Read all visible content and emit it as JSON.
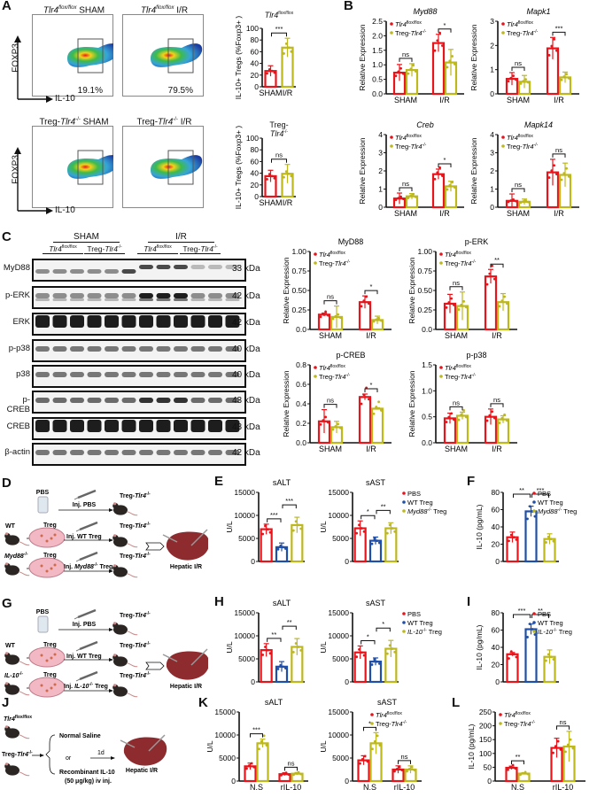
{
  "colors": {
    "red": "#e8141b",
    "olive": "#bdb81c",
    "blue": "#1f4fa8",
    "black": "#111111"
  },
  "panels": {
    "A": {
      "label": "A",
      "flow": [
        {
          "title_pre": "Tlr4",
          "title_sup": "flox/flox",
          "title_post": " SHAM",
          "pct": "19.1%"
        },
        {
          "title_pre": "Tlr4",
          "title_sup": "flox/flox",
          "title_post": " I/R",
          "pct": "79.5%"
        },
        {
          "title_pre": "Treg-",
          "title_it": "Tlr4",
          "title_sup": "-/-",
          "title_post": " SHAM",
          "pct": ""
        },
        {
          "title_pre": "Treg-",
          "title_it": "Tlr4",
          "title_sup": "-/-",
          "title_post": " I/R",
          "pct": ""
        }
      ],
      "y_axis": "FOXP3",
      "x_axis": "IL-10"
    },
    "B": {
      "label": "B"
    },
    "C": {
      "label": "C",
      "groups": [
        "SHAM",
        "I/R"
      ],
      "subgroups": [
        "Tlr4 flox/flox",
        "Treg-Tlr4 -/-",
        "Tlr4 flox/flox",
        "Treg-Tlr4 -/-"
      ],
      "blots": [
        {
          "name": "MyD88",
          "kda": "33 kDa"
        },
        {
          "name": "p-ERK",
          "kda": "42 kDa"
        },
        {
          "name": "ERK",
          "kda": "42 kDa"
        },
        {
          "name": "p-p38",
          "kda": "40 kDa"
        },
        {
          "name": "p38",
          "kda": "40 kDa"
        },
        {
          "name": "p-CREB",
          "kda": "43 kDa"
        },
        {
          "name": "CREB",
          "kda": "43 kDa"
        },
        {
          "name": "β-actin",
          "kda": "42 kDa"
        }
      ]
    },
    "D": {
      "label": "D",
      "source": "PBS",
      "donors": [
        "WT",
        "Myd88-/-"
      ],
      "treg": "Treg",
      "injections": [
        "Inj. PBS",
        "Inj. WT  Treg",
        "Inj. Myd88-/- Treg"
      ],
      "recipient": "Treg-Tlr4-/-",
      "outcome": "Hepatic I/R"
    },
    "G": {
      "label": "G",
      "source": "PBS",
      "donors": [
        "WT",
        "IL-10-/-"
      ],
      "treg": "Treg",
      "injections": [
        "Inj. PBS",
        "Inj. WT  Treg",
        "Inj. IL-10-/- Treg"
      ],
      "recipient": "Treg-Tlr4-/-",
      "outcome": "Hepatic I/R"
    },
    "J": {
      "label": "J",
      "mice": [
        "Tlr4 flox/flox",
        "Treg-Tlr4-/-"
      ],
      "options": [
        "Normal Saline",
        "or",
        "Recombinant IL-10",
        "(50 μg/kg) iv inj."
      ],
      "time": "1d",
      "outcome": "Hepatic I/R"
    },
    "E": {
      "label": "E"
    },
    "F": {
      "label": "F"
    },
    "H": {
      "label": "H"
    },
    "I": {
      "label": "I"
    },
    "K": {
      "label": "K"
    },
    "L": {
      "label": "L"
    }
  },
  "chart_data": [
    {
      "id": "A_flox",
      "type": "bar",
      "title": "Tlr4 flox/flox",
      "categories": [
        "SHAM",
        "I/R"
      ],
      "values": [
        27,
        67
      ],
      "errors": [
        9,
        16
      ],
      "ylabel": "IL-10+ Tregs (%Foxp3+ )",
      "ylim": [
        0,
        100
      ],
      "yticks": [
        0,
        20,
        40,
        60,
        80,
        100
      ],
      "colors": [
        "#e8141b",
        "#bdb81c"
      ],
      "sig": [
        {
          "from": 0,
          "to": 1,
          "label": "***"
        }
      ]
    },
    {
      "id": "A_ko",
      "type": "bar",
      "title": "Treg-Tlr4 -/-",
      "categories": [
        "SHAM",
        "I/R"
      ],
      "values": [
        35,
        39
      ],
      "errors": [
        10,
        16
      ],
      "ylabel": "IL-10+ Tregs (%Foxp3+ )",
      "ylim": [
        0,
        100
      ],
      "yticks": [
        0,
        20,
        40,
        60,
        80,
        100
      ],
      "colors": [
        "#e8141b",
        "#bdb81c"
      ],
      "sig": [
        {
          "from": 0,
          "to": 1,
          "label": "ns"
        }
      ]
    },
    {
      "id": "B_Myd88",
      "type": "bar",
      "title": "Myd88",
      "categories": [
        "SHAM",
        "I/R"
      ],
      "series": [
        {
          "name": "Tlr4 flox/flox",
          "values": [
            0.73,
            1.75
          ],
          "errors": [
            0.28,
            0.3
          ]
        },
        {
          "name": "Treg-Tlr4 -/-",
          "values": [
            0.82,
            1.08
          ],
          "errors": [
            0.22,
            0.45
          ]
        }
      ],
      "ylabel": "Relative Expression",
      "ylim": [
        0,
        2.5
      ],
      "yticks": [
        "0.0",
        "0.5",
        "1.0",
        "1.5",
        "2.0",
        "2.5"
      ],
      "sig": [
        {
          "group": 0,
          "label": "ns"
        },
        {
          "group": 1,
          "label": "*"
        }
      ]
    },
    {
      "id": "B_Mapk1",
      "type": "bar",
      "title": "Mapk1",
      "categories": [
        "SHAM",
        "I/R"
      ],
      "series": [
        {
          "name": "Tlr4 flox/flox",
          "values": [
            0.62,
            1.88
          ],
          "errors": [
            0.26,
            0.45
          ]
        },
        {
          "name": "Treg-Tlr4 -/-",
          "values": [
            0.5,
            0.68
          ],
          "errors": [
            0.26,
            0.22
          ]
        }
      ],
      "ylabel": "Relative Expression",
      "ylim": [
        0,
        3
      ],
      "yticks": [
        "0",
        "1",
        "2",
        "3"
      ],
      "sig": [
        {
          "group": 0,
          "label": "ns"
        },
        {
          "group": 1,
          "label": "***"
        }
      ]
    },
    {
      "id": "B_Creb",
      "type": "bar",
      "title": "Creb",
      "categories": [
        "SHAM",
        "I/R"
      ],
      "series": [
        {
          "name": "Tlr4 flox/flox",
          "values": [
            0.48,
            1.82
          ],
          "errors": [
            0.3,
            0.28
          ]
        },
        {
          "name": "Treg-Tlr4 -/-",
          "values": [
            0.6,
            1.15
          ],
          "errors": [
            0.15,
            0.28
          ]
        }
      ],
      "ylabel": "Relative Expression",
      "ylim": [
        0,
        4
      ],
      "yticks": [
        "0",
        "1",
        "2",
        "3",
        "4"
      ],
      "sig": [
        {
          "group": 0,
          "label": "ns"
        },
        {
          "group": 1,
          "label": "*"
        }
      ]
    },
    {
      "id": "B_Mapk14",
      "type": "bar",
      "title": "Mapk14",
      "categories": [
        "SHAM",
        "I/R"
      ],
      "series": [
        {
          "name": "Tlr4 flox/flox",
          "values": [
            0.35,
            1.92
          ],
          "errors": [
            0.38,
            0.72
          ]
        },
        {
          "name": "Treg-Tlr4 -/-",
          "values": [
            0.3,
            1.78
          ],
          "errors": [
            0.15,
            0.65
          ]
        }
      ],
      "ylabel": "Relative Expression",
      "ylim": [
        0,
        4
      ],
      "yticks": [
        "0",
        "1",
        "2",
        "3",
        "4"
      ],
      "sig": [
        {
          "group": 0,
          "label": "ns"
        },
        {
          "group": 1,
          "label": "ns"
        }
      ]
    },
    {
      "id": "C_MyD88",
      "type": "bar",
      "title": "MyD88",
      "categories": [
        "SHAM",
        "I/R"
      ],
      "series": [
        {
          "name": "Tlr4 flox/flox",
          "values": [
            0.19,
            0.35
          ],
          "errors": [
            0.02,
            0.08
          ]
        },
        {
          "name": "Treg-Tlr4 -/-",
          "values": [
            0.16,
            0.12
          ],
          "errors": [
            0.14,
            0.05
          ]
        }
      ],
      "ylabel": "Relative Expression",
      "ylim": [
        0,
        1
      ],
      "yticks": [
        "0.0",
        "0.25",
        "0.50",
        "0.75",
        "1.00"
      ],
      "sig": [
        {
          "group": 0,
          "label": "ns"
        },
        {
          "group": 1,
          "label": "*"
        }
      ]
    },
    {
      "id": "C_pERK",
      "type": "bar",
      "title": "p-ERK",
      "categories": [
        "SHAM",
        "I/R"
      ],
      "series": [
        {
          "name": "Tlr4 flox/flox",
          "values": [
            0.33,
            0.68
          ],
          "errors": [
            0.12,
            0.09
          ]
        },
        {
          "name": "Treg-Tlr4 -/-",
          "values": [
            0.3,
            0.35
          ],
          "errors": [
            0.18,
            0.11
          ]
        }
      ],
      "ylabel": "Relative Expression",
      "ylim": [
        0,
        1
      ],
      "yticks": [
        "0.0",
        "0.25",
        "0.50",
        "0.75",
        "1.00"
      ],
      "sig": [
        {
          "group": 0,
          "label": "ns"
        },
        {
          "group": 1,
          "label": "**"
        }
      ]
    },
    {
      "id": "C_pCREB",
      "type": "bar",
      "title": "p-CREB",
      "categories": [
        "SHAM",
        "I/R"
      ],
      "series": [
        {
          "name": "Tlr4 flox/flox",
          "values": [
            0.22,
            0.47
          ],
          "errors": [
            0.12,
            0.03
          ]
        },
        {
          "name": "Treg-Tlr4 -/-",
          "values": [
            0.16,
            0.35
          ],
          "errors": [
            0.06,
            0.01
          ]
        }
      ],
      "ylabel": "Relative Expression",
      "ylim": [
        0,
        0.8
      ],
      "yticks": [
        "0.0",
        "0.2",
        "0.4",
        "0.6",
        "0.8"
      ],
      "sig": [
        {
          "group": 0,
          "label": "ns"
        },
        {
          "group": 1,
          "label": "*"
        }
      ]
    },
    {
      "id": "C_pp38",
      "type": "bar",
      "title": "p-p38",
      "categories": [
        "SHAM",
        "I/R"
      ],
      "series": [
        {
          "name": "Tlr4 flox/flox",
          "values": [
            0.47,
            0.5
          ],
          "errors": [
            0.1,
            0.15
          ]
        },
        {
          "name": "Treg-Tlr4 -/-",
          "values": [
            0.52,
            0.45
          ],
          "errors": [
            0.07,
            0.07
          ]
        }
      ],
      "ylabel": "Relative Expression",
      "ylim": [
        0,
        1.5
      ],
      "yticks": [
        "0.0",
        "0.5",
        "1.0",
        "1.5"
      ],
      "sig": [
        {
          "group": 0,
          "label": "ns"
        },
        {
          "group": 1,
          "label": "ns"
        }
      ]
    },
    {
      "id": "E_sALT",
      "type": "bar",
      "title": "sALT",
      "categories": [
        "PBS",
        "WT Treg",
        "Myd88-/- Treg"
      ],
      "values": [
        7000,
        3100,
        7900
      ],
      "errors": [
        1100,
        900,
        1700
      ],
      "ylabel": "U/L",
      "ylim": [
        0,
        15000
      ],
      "yticks": [
        "0",
        "5000",
        "10000",
        "15000"
      ],
      "colors": [
        "#e8141b",
        "#1f4fa8",
        "#bdb81c"
      ],
      "sig": [
        {
          "from": 0,
          "to": 1,
          "label": "***"
        },
        {
          "from": 1,
          "to": 2,
          "label": "***"
        }
      ]
    },
    {
      "id": "E_sAST",
      "type": "bar",
      "title": "sAST",
      "categories": [
        "PBS",
        "WT Treg",
        "Myd88-/- Treg"
      ],
      "values": [
        7200,
        4500,
        7200
      ],
      "errors": [
        1600,
        800,
        1200
      ],
      "ylabel": "U/L",
      "ylim": [
        0,
        15000
      ],
      "yticks": [
        "0",
        "5000",
        "10000",
        "15000"
      ],
      "colors": [
        "#e8141b",
        "#1f4fa8",
        "#bdb81c"
      ],
      "sig": [
        {
          "from": 0,
          "to": 1,
          "label": "*"
        },
        {
          "from": 1,
          "to": 2,
          "label": "**"
        }
      ]
    },
    {
      "id": "F_IL10",
      "type": "bar",
      "title": "",
      "categories": [
        "PBS",
        "WT Treg",
        "Myd88-/- Treg"
      ],
      "values": [
        28,
        58,
        26
      ],
      "errors": [
        6,
        6,
        6
      ],
      "ylabel": "IL-10 (pg/mL)",
      "ylim": [
        0,
        80
      ],
      "yticks": [
        "0",
        "20",
        "40",
        "60",
        "80"
      ],
      "colors": [
        "#e8141b",
        "#1f4fa8",
        "#bdb81c"
      ],
      "sig": [
        {
          "from": 0,
          "to": 1,
          "label": "**"
        },
        {
          "from": 1,
          "to": 2,
          "label": "***"
        }
      ],
      "legend": [
        "PBS",
        "WT Treg",
        "Myd88-/- Treg"
      ]
    },
    {
      "id": "H_sALT",
      "type": "bar",
      "title": "sALT",
      "categories": [
        "PBS",
        "WT Treg",
        "IL-10-/- Treg"
      ],
      "values": [
        6900,
        3300,
        7600
      ],
      "errors": [
        1400,
        1100,
        1800
      ],
      "ylabel": "U/L",
      "ylim": [
        0,
        15000
      ],
      "yticks": [
        "0",
        "5000",
        "10000",
        "15000"
      ],
      "colors": [
        "#e8141b",
        "#1f4fa8",
        "#bdb81c"
      ],
      "sig": [
        {
          "from": 0,
          "to": 1,
          "label": "**"
        },
        {
          "from": 1,
          "to": 2,
          "label": "**"
        }
      ]
    },
    {
      "id": "H_sAST",
      "type": "bar",
      "title": "sAST",
      "categories": [
        "PBS",
        "WT Treg",
        "IL-10-/- Treg"
      ],
      "values": [
        6400,
        4400,
        7200
      ],
      "errors": [
        1400,
        800,
        1800
      ],
      "ylabel": "U/L",
      "ylim": [
        0,
        15000
      ],
      "yticks": [
        "0",
        "5000",
        "10000",
        "15000"
      ],
      "colors": [
        "#e8141b",
        "#1f4fa8",
        "#bdb81c"
      ],
      "sig": [
        {
          "from": 0,
          "to": 1,
          "label": "*"
        },
        {
          "from": 1,
          "to": 2,
          "label": "*"
        }
      ]
    },
    {
      "id": "I_IL10",
      "type": "bar",
      "title": "",
      "categories": [
        "PBS",
        "WT Treg",
        "IL-10-/- Treg"
      ],
      "values": [
        32,
        61,
        29
      ],
      "errors": [
        2,
        6,
        8
      ],
      "ylabel": "IL-10 (pg/mL)",
      "ylim": [
        0,
        80
      ],
      "yticks": [
        "0",
        "20",
        "40",
        "60",
        "80"
      ],
      "colors": [
        "#e8141b",
        "#1f4fa8",
        "#bdb81c"
      ],
      "sig": [
        {
          "from": 0,
          "to": 1,
          "label": "***"
        },
        {
          "from": 1,
          "to": 2,
          "label": "**"
        }
      ],
      "legend": [
        "PBS",
        "WT Treg",
        "IL-10-/- Treg"
      ]
    },
    {
      "id": "K_sALT",
      "type": "bar",
      "title": "sALT",
      "categories": [
        "N.S",
        "rIL-10"
      ],
      "series": [
        {
          "name": "Tlr4 flox/flox",
          "values": [
            3200,
            1500
          ],
          "errors": [
            700,
            300
          ]
        },
        {
          "name": "Treg-Tlr4 -/-",
          "values": [
            8200,
            1600
          ],
          "errors": [
            900,
            250
          ]
        }
      ],
      "ylabel": "U/L",
      "ylim": [
        0,
        15000
      ],
      "yticks": [
        "0",
        "5000",
        "10000",
        "15000"
      ],
      "sig": [
        {
          "group": 0,
          "label": "***"
        },
        {
          "group": 1,
          "label": "ns"
        }
      ]
    },
    {
      "id": "K_sAST",
      "type": "bar",
      "title": "sAST",
      "categories": [
        "N.S",
        "rIL-10"
      ],
      "series": [
        {
          "name": "Tlr4 flox/flox",
          "values": [
            4500,
            2500
          ],
          "errors": [
            1000,
            800
          ]
        },
        {
          "name": "Treg-Tlr4 -/-",
          "values": [
            8200,
            2500
          ],
          "errors": [
            2300,
            800
          ]
        }
      ],
      "ylabel": "U/L",
      "ylim": [
        0,
        15000
      ],
      "yticks": [
        "0",
        "5000",
        "10000",
        "15000"
      ],
      "sig": [
        {
          "group": 0,
          "label": "*"
        },
        {
          "group": 1,
          "label": "ns"
        }
      ]
    },
    {
      "id": "L_IL10",
      "type": "bar",
      "title": "",
      "categories": [
        "N.S",
        "rIL-10"
      ],
      "series": [
        {
          "name": "Tlr4 flox/flox",
          "values": [
            48,
            120
          ],
          "errors": [
            6,
            35
          ]
        },
        {
          "name": "Treg-Tlr4 -/-",
          "values": [
            27,
            125
          ],
          "errors": [
            3,
            55
          ]
        }
      ],
      "ylabel": "IL-10 (pg/mL)",
      "ylim": [
        0,
        250
      ],
      "yticks": [
        "0",
        "50",
        "100",
        "150",
        "200",
        "250"
      ],
      "sig": [
        {
          "group": 0,
          "label": "**"
        },
        {
          "group": 1,
          "label": "ns"
        }
      ]
    }
  ]
}
